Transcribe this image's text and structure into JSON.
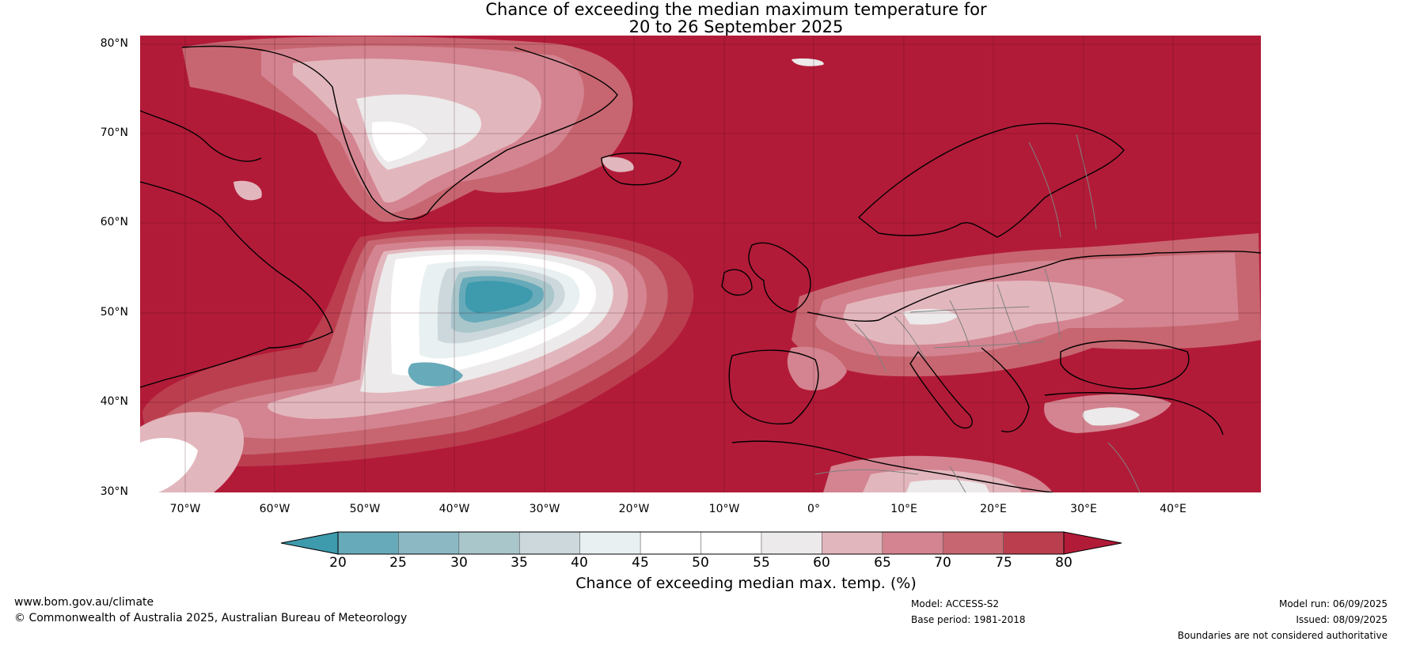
{
  "title": {
    "line1": "Chance of exceeding the median maximum temperature for",
    "line2": "20 to 26 September 2025"
  },
  "map": {
    "lat_labels": [
      "80°N",
      "70°N",
      "60°N",
      "50°N",
      "40°N",
      "30°N"
    ],
    "lon_labels": [
      "70°W",
      "60°W",
      "50°W",
      "40°W",
      "30°W",
      "20°W",
      "10°W",
      "0°",
      "10°E",
      "20°E",
      "30°E",
      "40°E"
    ],
    "colors": {
      "high": "#b21b38",
      "land_outline": "#000000",
      "border": "#808080"
    }
  },
  "colorbar": {
    "ticks": [
      "20",
      "25",
      "30",
      "35",
      "40",
      "45",
      "50",
      "55",
      "60",
      "65",
      "70",
      "75",
      "80"
    ],
    "colors": [
      "#3e9aad",
      "#67aab9",
      "#8bb8c3",
      "#a9c6cb",
      "#cdd8dc",
      "#e9f0f1",
      "#ffffff",
      "#ffffff",
      "#eceaea",
      "#e2b6bd",
      "#d38490",
      "#c76670",
      "#bb3e4f",
      "#b21b38"
    ],
    "label": "Chance of exceeding median max. temp. (%)"
  },
  "footer": {
    "website": "www.bom.gov.au/climate",
    "copyright": "© Commonwealth of Australia 2025, Australian Bureau of Meteorology",
    "model": "Model: ACCESS-S2",
    "base_period": "Base period: 1981-2018",
    "model_run": "Model run: 06/09/2025",
    "issued": "Issued: 08/09/2025",
    "disclaimer": "Boundaries are not considered authoritative"
  }
}
